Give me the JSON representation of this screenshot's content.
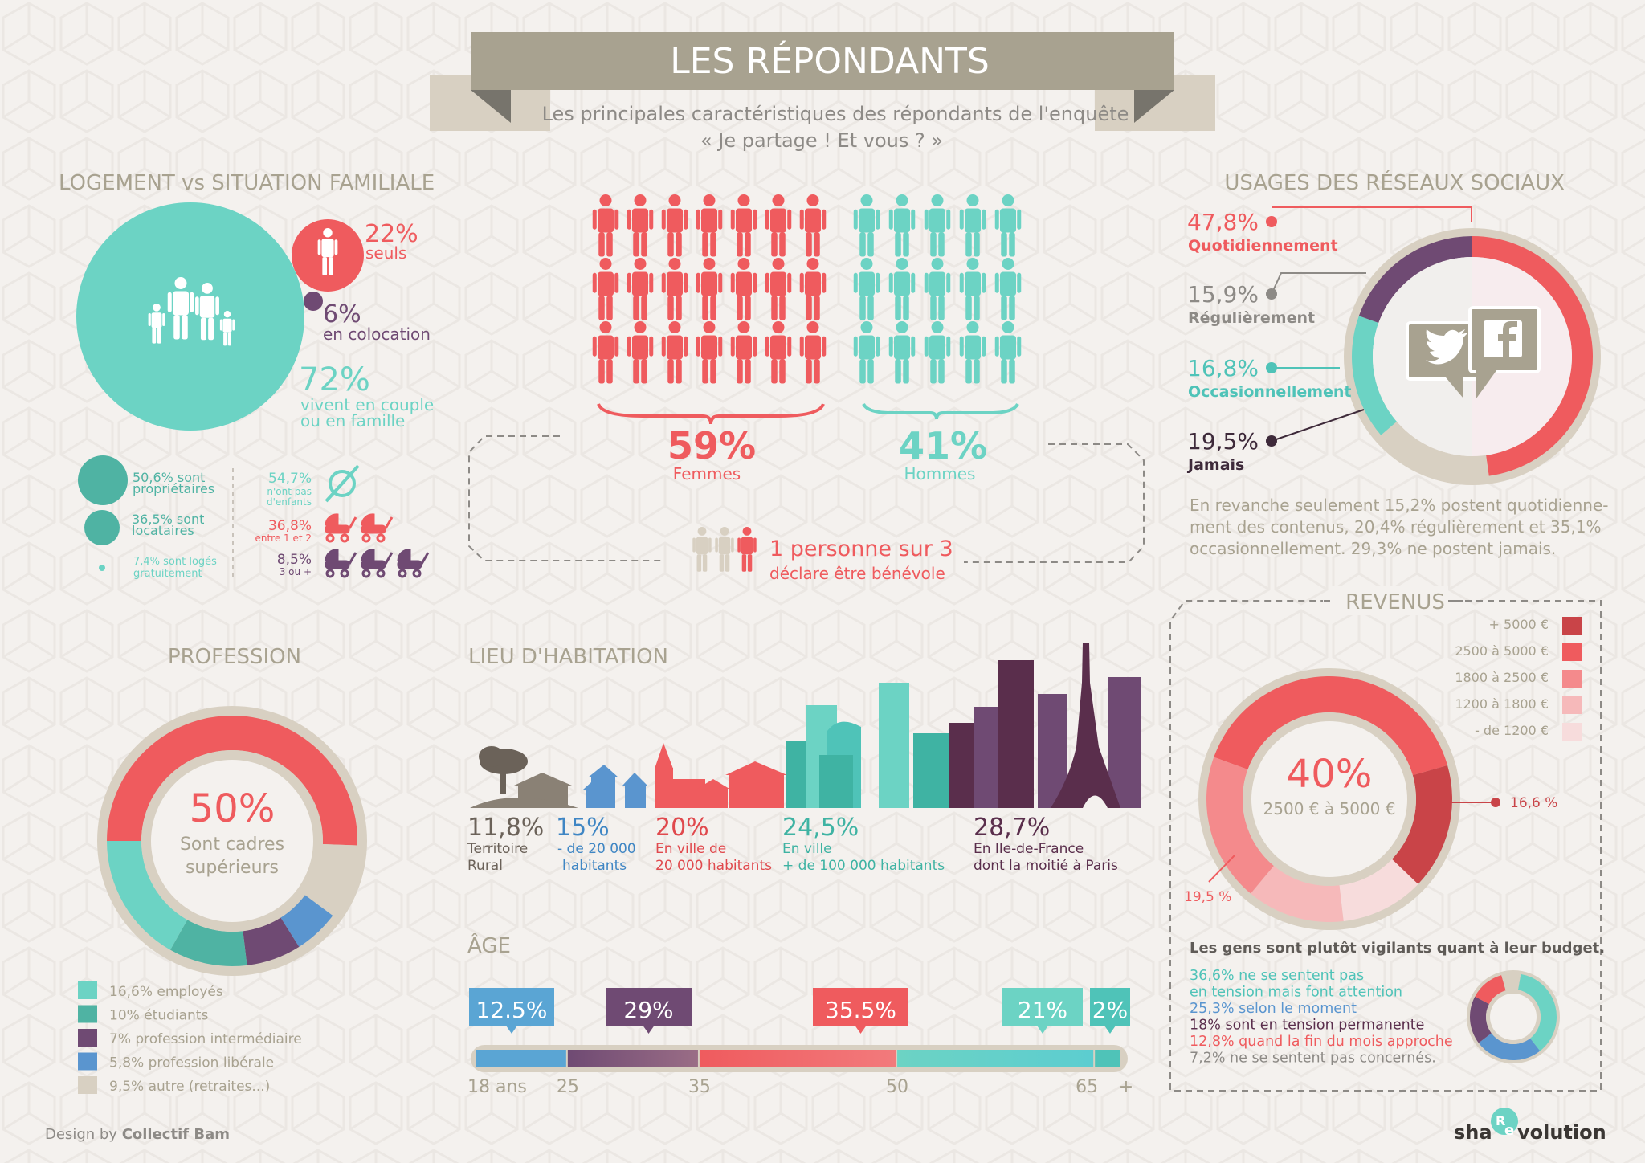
{
  "header": {
    "title": "LES RÉPONDANTS",
    "subtitle_line1": "Les principales caractéristiques des répondants de l'enquête",
    "subtitle_line2": "« Je partage ! Et vous ? »"
  },
  "colors": {
    "teal": "#6cd3c4",
    "teal_dark": "#4fb3a3",
    "coral": "#ef5b5e",
    "purple": "#6f4a73",
    "plum": "#5a2e4c",
    "blue": "#5a95cf",
    "beige": "#d8d0c2",
    "taupe": "#a8a290",
    "text_grey": "#8d8a86"
  },
  "logement": {
    "title": "LOGEMENT vs SITUATION FAMILIALE",
    "seuls_pct": "22%",
    "seuls_label": "seuls",
    "colocation_pct": "6%",
    "colocation_label": "en colocation",
    "couple_pct": "72%",
    "couple_label1": "vivent en couple",
    "couple_label2": "ou en famille",
    "proprietaires1": "50,6% sont",
    "proprietaires2": "propriétaires",
    "locataires1": "36,5% sont",
    "locataires2": "locataires",
    "loges1": "7,4% sont logés",
    "loges2": "gratuitement",
    "enfants0_pct": "54,7%",
    "enfants0_l1": "n'ont pas",
    "enfants0_l2": "d'enfants",
    "enfants12_pct": "36,8%",
    "enfants12_l": "entre 1 et 2",
    "enfants3_pct": "8,5%",
    "enfants3_l": "3 ou +"
  },
  "gender": {
    "femmes_pct": "59%",
    "femmes_label": "Femmes",
    "hommes_pct": "41%",
    "hommes_label": "Hommes",
    "benevole_line1": "1 personne sur 3",
    "benevole_line2": "déclare être bénévole"
  },
  "reseaux": {
    "title": "USAGES DES RÉSEAUX SOCIAUX",
    "items": [
      {
        "pct": "47,8%",
        "label": "Quotidiennement",
        "color": "#ef5b5e"
      },
      {
        "pct": "15,9%",
        "label": "Régulièrement",
        "color": "#8d8a86"
      },
      {
        "pct": "16,8%",
        "label": "Occasionnellement",
        "color": "#4fc3b8"
      },
      {
        "pct": "19,5%",
        "label": "Jamais",
        "color": "#3e2a3a"
      }
    ],
    "note1": "En revanche seulement 15,2% postent quotidienne-",
    "note2": "ment des contenus, 20,4% régulièrement et 35,1%",
    "note3": "occasionnellement. 29,3% ne postent jamais."
  },
  "profession": {
    "title": "PROFESSION",
    "center_pct": "50%",
    "center_l1": "Sont cadres",
    "center_l2": "supérieurs",
    "legend": [
      {
        "label": "16,6% employés",
        "color": "#6cd3c4"
      },
      {
        "label": "10% étudiants",
        "color": "#4fb3a3"
      },
      {
        "label": "7% profession intermédiaire",
        "color": "#6f4a73"
      },
      {
        "label": "5,8% profession libérale",
        "color": "#5a95cf"
      },
      {
        "label": "9,5% autre (retraites...)",
        "color": "#d8d0c2"
      }
    ]
  },
  "lieu": {
    "title": "LIEU D'HABITATION",
    "items": [
      {
        "pct": "11,8%",
        "l1": "Territoire",
        "l2": "Rural",
        "color": "#6b6259"
      },
      {
        "pct": "15%",
        "l1": "- de 20 000",
        "l2": "habitants",
        "color": "#3f86c4"
      },
      {
        "pct": "20%",
        "l1": "En ville de",
        "l2": "20 000 habitants",
        "color": "#e0494d"
      },
      {
        "pct": "24,5%",
        "l1": "En ville",
        "l2": "+ de 100 000  habitants",
        "color": "#3fb3a3"
      },
      {
        "pct": "28,7%",
        "l1": "En Ile-de-France",
        "l2": "dont la moitié à Paris",
        "color": "#5a2e4c"
      }
    ]
  },
  "age": {
    "title": "ÂGE",
    "ticks": [
      "18 ans",
      "25",
      "35",
      "50",
      "65",
      "+"
    ],
    "bubbles": [
      {
        "label": "12.5%",
        "color": "#5aa5d4"
      },
      {
        "label": "29%",
        "color": "#6f4a73"
      },
      {
        "label": "35.5%",
        "color": "#ef5b5e"
      },
      {
        "label": "21%",
        "color": "#6cd3c4"
      },
      {
        "label": "2%",
        "color": "#4fc3b8"
      }
    ]
  },
  "revenus": {
    "title": "REVENUS",
    "legend": [
      {
        "label": "+ 5000 €",
        "color": "#c94448"
      },
      {
        "label": "2500 à 5000 €",
        "color": "#ef5b5e"
      },
      {
        "label": "1800 à 2500 €",
        "color": "#f48a8c"
      },
      {
        "label": "1200 à 1800 €",
        "color": "#f6b9ba"
      },
      {
        "label": "- de 1200 €",
        "color": "#f7dcdc"
      }
    ],
    "center_pct": "40%",
    "center_label": "2500 € à 5000 €",
    "callout_right": "16,6 %",
    "callout_left": "19,5 %",
    "budget_title": "Les gens sont plutôt vigilants quant à leur budget.",
    "budget_lines": [
      {
        "text": "36,6% ne se sentent pas",
        "color": "#4fc3b8"
      },
      {
        "text": "en tension mais font attention",
        "color": "#4fc3b8"
      },
      {
        "text": "25,3% selon le moment",
        "color": "#5a95cf"
      },
      {
        "text": "18% sont en tension permanente",
        "color": "#5a2e4c"
      },
      {
        "text": "12,8% quand la fin du mois approche",
        "color": "#ef5b5e"
      },
      {
        "text": "7,2% ne se sentent pas concernés.",
        "color": "#8d8a86"
      }
    ]
  },
  "footer": {
    "credit_prefix": "Design by",
    "credit_name": "Collectif Bam",
    "logo_a": "sha",
    "logo_r": "R",
    "logo_e": "e",
    "logo_b": "volution"
  },
  "chart_data": [
    {
      "type": "pie",
      "title": "LOGEMENT vs SITUATION FAMILIALE",
      "categories": [
        "seuls",
        "en colocation",
        "vivent en couple ou en famille"
      ],
      "values": [
        22,
        6,
        72
      ]
    },
    {
      "type": "bar",
      "categories": [
        "propriétaires",
        "locataires",
        "logés gratuitement"
      ],
      "values": [
        50.6,
        36.5,
        7.4
      ]
    },
    {
      "type": "bar",
      "categories": [
        "n'ont pas d'enfants",
        "entre 1 et 2",
        "3 ou +"
      ],
      "values": [
        54.7,
        36.8,
        8.5
      ]
    },
    {
      "type": "bar",
      "categories": [
        "Femmes",
        "Hommes"
      ],
      "values": [
        59,
        41
      ]
    },
    {
      "type": "pie",
      "title": "USAGES DES RÉSEAUX SOCIAUX",
      "categories": [
        "Quotidiennement",
        "Régulièrement",
        "Occasionnellement",
        "Jamais"
      ],
      "values": [
        47.8,
        15.9,
        16.8,
        19.5
      ]
    },
    {
      "type": "pie",
      "title": "PROFESSION",
      "categories": [
        "Sont cadres supérieurs",
        "employés",
        "étudiants",
        "profession intermédiaire",
        "profession libérale",
        "autre (retraites...)"
      ],
      "values": [
        50,
        16.6,
        10,
        7,
        5.8,
        9.5
      ]
    },
    {
      "type": "bar",
      "title": "LIEU D'HABITATION",
      "categories": [
        "Territoire Rural",
        "- de 20 000 habitants",
        "En ville de 20 000 habitants",
        "En ville + de 100 000 habitants",
        "En Ile-de-France dont la moitié à Paris"
      ],
      "values": [
        11.8,
        15,
        20,
        24.5,
        28.7
      ]
    },
    {
      "type": "bar",
      "title": "ÂGE",
      "categories": [
        "18-25",
        "25-35",
        "35-50",
        "50-65",
        "65+"
      ],
      "values": [
        12.5,
        29,
        35.5,
        21,
        2
      ]
    },
    {
      "type": "pie",
      "title": "REVENUS",
      "categories": [
        "+ 5000 €",
        "2500 à 5000 €",
        "1800 à 2500 €",
        "1200 à 1800 €",
        "- de 1200 €"
      ],
      "values": [
        16.6,
        40,
        19.5,
        12.9,
        11
      ]
    },
    {
      "type": "pie",
      "categories": [
        "ne se sentent pas en tension mais font attention",
        "selon le moment",
        "sont en tension permanente",
        "quand la fin du mois approche",
        "ne se sentent pas concernés"
      ],
      "values": [
        36.6,
        25.3,
        18,
        12.8,
        7.2
      ]
    }
  ]
}
